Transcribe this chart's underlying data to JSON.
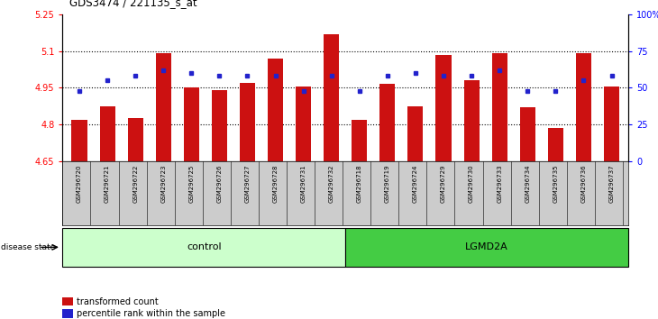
{
  "title": "GDS3474 / 221135_s_at",
  "samples": [
    "GSM296720",
    "GSM296721",
    "GSM296722",
    "GSM296723",
    "GSM296725",
    "GSM296726",
    "GSM296727",
    "GSM296728",
    "GSM296731",
    "GSM296732",
    "GSM296718",
    "GSM296719",
    "GSM296724",
    "GSM296729",
    "GSM296730",
    "GSM296733",
    "GSM296734",
    "GSM296735",
    "GSM296736",
    "GSM296737"
  ],
  "red_values": [
    4.82,
    4.875,
    4.825,
    5.09,
    4.95,
    4.94,
    4.97,
    5.07,
    4.955,
    5.17,
    4.82,
    4.965,
    4.875,
    5.085,
    4.98,
    5.09,
    4.87,
    4.785,
    5.09,
    4.955
  ],
  "blue_values": [
    48,
    55,
    58,
    62,
    60,
    58,
    58,
    58,
    48,
    58,
    48,
    58,
    60,
    58,
    58,
    62,
    48,
    48,
    55,
    58
  ],
  "group": [
    "control",
    "control",
    "control",
    "control",
    "control",
    "control",
    "control",
    "control",
    "control",
    "control",
    "LGMD2A",
    "LGMD2A",
    "LGMD2A",
    "LGMD2A",
    "LGMD2A",
    "LGMD2A",
    "LGMD2A",
    "LGMD2A",
    "LGMD2A",
    "LGMD2A"
  ],
  "ylim_left": [
    4.65,
    5.25
  ],
  "ylim_right": [
    0,
    100
  ],
  "yticks_left": [
    4.65,
    4.8,
    4.95,
    5.1,
    5.25
  ],
  "yticks_right": [
    0,
    25,
    50,
    75,
    100
  ],
  "ytick_labels_left": [
    "4.65",
    "4.8",
    "4.95",
    "5.1",
    "5.25"
  ],
  "ytick_labels_right": [
    "0",
    "25",
    "50",
    "75",
    "100%"
  ],
  "hlines": [
    4.8,
    4.95,
    5.1
  ],
  "bar_color": "#cc1111",
  "dot_color": "#2222cc",
  "control_color": "#ccffcc",
  "lgmd_color": "#44cc44",
  "tick_bg_color": "#cccccc",
  "n_control": 10,
  "n_lgmd": 10,
  "fig_width": 7.3,
  "fig_height": 3.54,
  "fig_dpi": 100
}
